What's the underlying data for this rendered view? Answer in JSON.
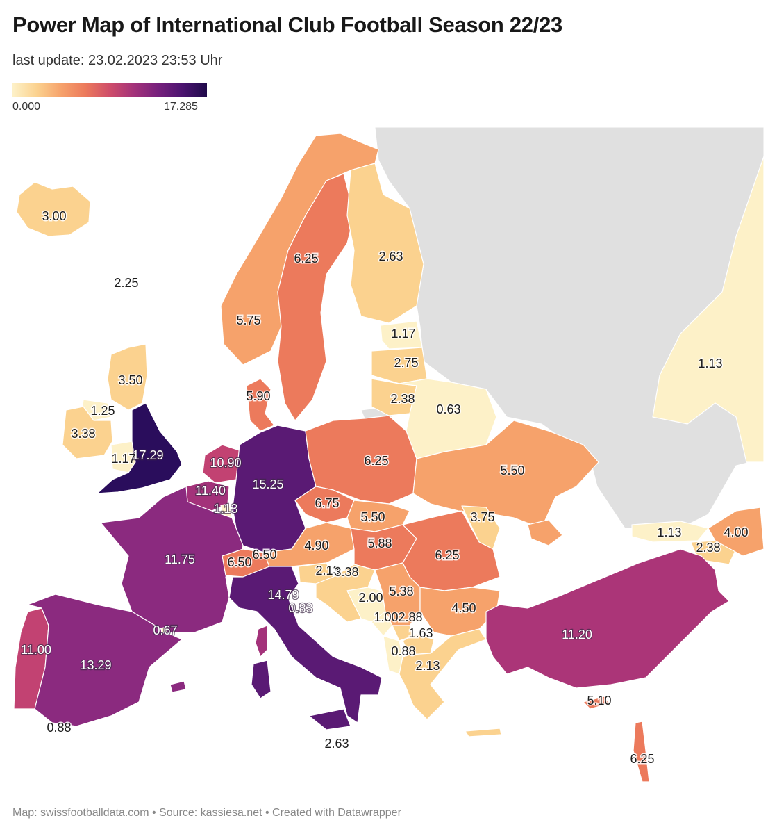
{
  "title": "Power Map of International Club Football Season 22/23",
  "subtitle": "last update: 23.02.2023 23:53 Uhr",
  "legend": {
    "min": "0.000",
    "max": "17.285"
  },
  "footer": "Map: swissfootballdata.com • Source: kassiesa.net • Created with Datawrapper",
  "colors": {
    "very_low": "#fdf1c8",
    "low": "#fbd28f",
    "mid_low": "#f6a26b",
    "mid": "#ec7a5c",
    "mid_high": "#c24272",
    "high": "#8b2a7f",
    "very_high": "#5a1a74",
    "max": "#2a0d5c",
    "no_data": "#e0e0e0"
  },
  "regions": [
    {
      "name": "Iceland",
      "value": "3.00"
    },
    {
      "name": "Faroe Islands",
      "value": "2.25"
    },
    {
      "name": "Norway",
      "value": "5.75"
    },
    {
      "name": "Sweden",
      "value": "6.25"
    },
    {
      "name": "Finland",
      "value": "2.63"
    },
    {
      "name": "Estonia",
      "value": "1.17"
    },
    {
      "name": "Latvia",
      "value": "2.75"
    },
    {
      "name": "Lithuania",
      "value": "2.38"
    },
    {
      "name": "Belarus",
      "value": "0.63"
    },
    {
      "name": "Kazakhstan",
      "value": "1.13"
    },
    {
      "name": "Scotland",
      "value": "3.50"
    },
    {
      "name": "Northern Ireland",
      "value": "1.25"
    },
    {
      "name": "Ireland",
      "value": "3.38"
    },
    {
      "name": "Wales",
      "value": "1.17"
    },
    {
      "name": "England",
      "value": "17.29"
    },
    {
      "name": "Denmark",
      "value": "5.90"
    },
    {
      "name": "Netherlands",
      "value": "10.90"
    },
    {
      "name": "Belgium",
      "value": "11.40"
    },
    {
      "name": "Luxembourg",
      "value": "1.13"
    },
    {
      "name": "Germany",
      "value": "15.25"
    },
    {
      "name": "Poland",
      "value": "6.25"
    },
    {
      "name": "Ukraine",
      "value": "5.50"
    },
    {
      "name": "Czechia",
      "value": "6.75"
    },
    {
      "name": "Slovakia",
      "value": "5.50"
    },
    {
      "name": "Moldova",
      "value": "3.75"
    },
    {
      "name": "Georgia",
      "value": "1.13"
    },
    {
      "name": "Azerbaijan",
      "value": "4.00"
    },
    {
      "name": "Armenia",
      "value": "2.38"
    },
    {
      "name": "France",
      "value": "11.75"
    },
    {
      "name": "Austria",
      "value": "4.90"
    },
    {
      "name": "Hungary",
      "value": "5.88"
    },
    {
      "name": "Romania",
      "value": "6.25"
    },
    {
      "name": "Switzerland",
      "value": "6.50"
    },
    {
      "name": "Liechtenstein",
      "value": "6.50"
    },
    {
      "name": "Slovenia",
      "value": "2.13"
    },
    {
      "name": "Croatia",
      "value": "3.38"
    },
    {
      "name": "Italy",
      "value": "14.79"
    },
    {
      "name": "San Marino",
      "value": "0.83"
    },
    {
      "name": "Bosnia and Herzegovina",
      "value": "2.00"
    },
    {
      "name": "Serbia",
      "value": "5.38"
    },
    {
      "name": "Bulgaria",
      "value": "4.50"
    },
    {
      "name": "Montenegro",
      "value": "1.00"
    },
    {
      "name": "Kosovo",
      "value": "2.88"
    },
    {
      "name": "North Macedonia",
      "value": "1.63"
    },
    {
      "name": "Albania",
      "value": "0.88"
    },
    {
      "name": "Greece",
      "value": "2.13"
    },
    {
      "name": "Turkey",
      "value": "11.20"
    },
    {
      "name": "Cyprus",
      "value": "5.10"
    },
    {
      "name": "Israel",
      "value": "6.25"
    },
    {
      "name": "Andorra",
      "value": "0.67"
    },
    {
      "name": "Portugal",
      "value": "11.00"
    },
    {
      "name": "Spain",
      "value": "13.29"
    },
    {
      "name": "Gibraltar",
      "value": "0.88"
    },
    {
      "name": "Malta",
      "value": "2.63"
    }
  ]
}
